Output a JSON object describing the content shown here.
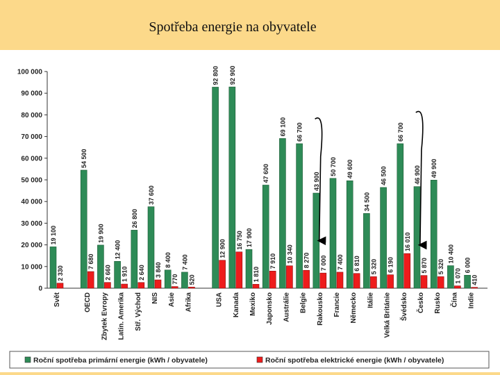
{
  "page": {
    "title": "Spotřeba energie na obyvatele"
  },
  "chart_data": {
    "type": "bar",
    "title": "Spotřeba energie na obyvatele",
    "xlabel": "",
    "ylabel": "",
    "ylim": [
      0,
      100000
    ],
    "y_ticks": [
      {
        "value": 0,
        "label": "0"
      },
      {
        "value": 10000,
        "label": "10 000"
      },
      {
        "value": 20000,
        "label": "20 000"
      },
      {
        "value": 30000,
        "label": "30 000"
      },
      {
        "value": 40000,
        "label": "40 000"
      },
      {
        "value": 50000,
        "label": "50 000"
      },
      {
        "value": 60000,
        "label": "60 000"
      },
      {
        "value": 70000,
        "label": "70 000"
      },
      {
        "value": 80000,
        "label": "80 000"
      },
      {
        "value": 90000,
        "label": "90 000"
      },
      {
        "value": 100000,
        "label": "100 000"
      }
    ],
    "categories": [
      "Svět",
      "OECD",
      "Zbytek Evropy",
      "Latin. Amerika",
      "Stř. Východ",
      "NIS",
      "Asie",
      "Afrika",
      "USA",
      "Kanada",
      "Mexiko",
      "Japonsko",
      "Austrálie",
      "Belgie",
      "Rakousko",
      "Francie",
      "Německo",
      "Itálie",
      "Velká Británie",
      "Švédsko",
      "Česko",
      "Rusko",
      "Čína",
      "Indie"
    ],
    "group_gaps_before": [
      1,
      8
    ],
    "series": [
      {
        "name": "Roční spotřeba primární energie (kWh / obyvatele)",
        "color": "#2e8b57",
        "values": [
          19100,
          54500,
          19900,
          12400,
          26800,
          37600,
          8400,
          7400,
          92800,
          92900,
          17900,
          47600,
          69100,
          66700,
          43900,
          50700,
          49600,
          34500,
          46500,
          66700,
          46900,
          49900,
          10400,
          6000
        ],
        "labels": [
          "19 100",
          "54 500",
          "19 900",
          "12 400",
          "26 800",
          "37 600",
          "8 400",
          "7 400",
          "92 800",
          "92 900",
          "17 900",
          "47 600",
          "69 100",
          "66 700",
          "43 900",
          "50 700",
          "49 600",
          "34 500",
          "46 500",
          "66 700",
          "46 900",
          "49 900",
          "10 400",
          "6 000"
        ]
      },
      {
        "name": "Roční spotřeba elektrické energie (kWh / obyvatele)",
        "color": "#ee1c1c",
        "values": [
          2330,
          7680,
          2660,
          1910,
          2640,
          3840,
          770,
          520,
          12900,
          16750,
          1810,
          7910,
          10340,
          8270,
          7000,
          7400,
          6810,
          5320,
          6190,
          16010,
          5870,
          5320,
          1070,
          410
        ],
        "labels": [
          "2 330",
          "7 680",
          "2 660",
          "1 910",
          "2 640",
          "3 840",
          "770",
          "520",
          "12 900",
          "16 750",
          "1 810",
          "7 910",
          "10 340",
          "8 270",
          "7 000",
          "7 400",
          "6 810",
          "5 320",
          "6 190",
          "16 010",
          "5 870",
          "5 320",
          "1 070",
          "410"
        ]
      }
    ],
    "legend": {
      "position": "bottom",
      "entries": [
        {
          "label": "Roční spotřeba primární energie (kWh / obyvatele)",
          "color": "#2e8b57"
        },
        {
          "label": "Roční spotřeba elektrické energie (kWh / obyvatele)",
          "color": "#ee1c1c"
        }
      ]
    },
    "annotations": [
      {
        "type": "bracket-arrow",
        "from_category": "Belgie",
        "to_category": "Rakousko",
        "value_top": 80000,
        "value_bottom": 20000
      },
      {
        "type": "bracket-arrow",
        "from_category": "Švédsko",
        "to_category": "Česko",
        "value_top": 83000,
        "value_bottom": 18000
      }
    ],
    "grid": false
  }
}
